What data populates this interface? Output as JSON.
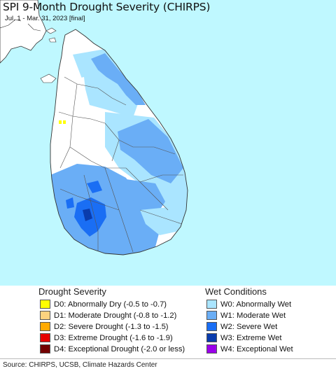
{
  "title": "SPI 9-Month Drought Severity (CHIRPS)",
  "subtitle": "Jul. 1 - Mar. 31, 2023 [final]",
  "colors": {
    "sea": "#bff8ff",
    "land_normal": "#ffffff",
    "border": "#555555"
  },
  "legend": {
    "drought_heading": "Drought Severity",
    "wet_heading": "Wet Conditions",
    "drought_items": [
      {
        "label": "D0: Abnormally Dry (-0.5 to -0.7)",
        "color": "#ffff00"
      },
      {
        "label": "D1: Moderate Drought (-0.8 to -1.2)",
        "color": "#fcd37f"
      },
      {
        "label": "D2: Severe Drought (-1.3 to -1.5)",
        "color": "#ffaa00"
      },
      {
        "label": "D3: Extreme Drought (-1.6 to -1.9)",
        "color": "#e60000"
      },
      {
        "label": "D4: Exceptional Drought (-2.0 or less)",
        "color": "#730000"
      }
    ],
    "wet_items": [
      {
        "label": "W0: Abnormally Wet",
        "color": "#aae5ff"
      },
      {
        "label": "W1: Moderate Wet",
        "color": "#6aaef6"
      },
      {
        "label": "W2: Severe Wet",
        "color": "#1a6ef4"
      },
      {
        "label": "W3: Extreme Wet",
        "color": "#0a3cad"
      },
      {
        "label": "W4: Exceptional Wet",
        "color": "#9a00ea"
      }
    ]
  },
  "footer": "Source: CHIRPS, UCSB, Climate Hazards Center"
}
